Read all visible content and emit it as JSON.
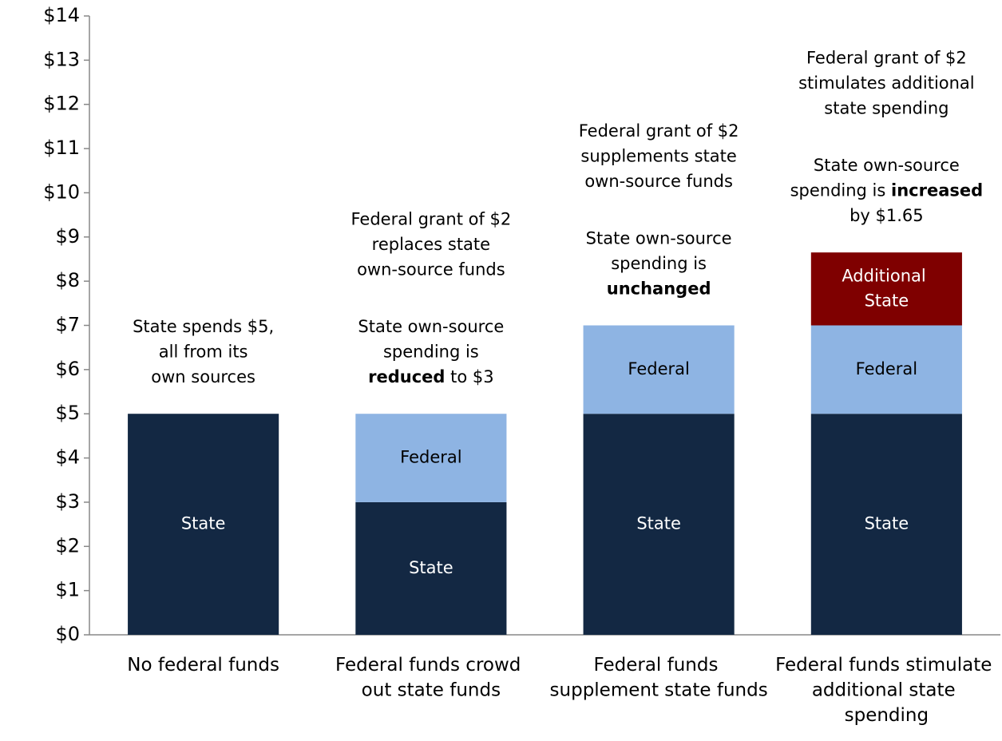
{
  "chart_data": {
    "type": "stacked_bar",
    "categories": [
      "No federal funds",
      "Federal funds crowd out state funds",
      "Federal funds supplement state funds",
      "Federal funds stimulate additional state spending"
    ],
    "series": [
      {
        "name": "State",
        "color": "#132843",
        "label_color": "#ffffff",
        "values": [
          5,
          3,
          5,
          5
        ]
      },
      {
        "name": "Federal",
        "color": "#8eb4e3",
        "label_color": "#000000",
        "values": [
          null,
          2,
          2,
          2
        ]
      },
      {
        "name": "Additional State",
        "color": "#7f0000",
        "label_color": "#ffffff",
        "values": [
          null,
          null,
          null,
          1.65
        ]
      }
    ],
    "annotations": [
      [
        [
          [
            "State spends $5,"
          ],
          [
            "all from its"
          ],
          [
            "own sources"
          ]
        ]
      ],
      [
        [
          [
            "Federal grant of $2"
          ],
          [
            "replaces state"
          ],
          [
            "own-source funds"
          ]
        ],
        [
          [
            "State own-source"
          ],
          [
            "spending is"
          ],
          [
            {
              "text": "reduced",
              "bold": true
            },
            "to $3"
          ]
        ]
      ],
      [
        [
          [
            "Federal grant of $2"
          ],
          [
            "supplements state"
          ],
          [
            "own-source funds"
          ]
        ],
        [
          [
            "State own-source"
          ],
          [
            "spending is"
          ],
          [
            {
              "text": "unchanged",
              "bold": true
            }
          ]
        ]
      ],
      [
        [
          [
            "Federal grant of $2"
          ],
          [
            "stimulates additional"
          ],
          [
            "state spending"
          ]
        ],
        [
          [
            "State own-source"
          ],
          [
            "spending is",
            {
              "text": "increased",
              "bold": true
            }
          ],
          [
            "by $1.65"
          ]
        ]
      ]
    ],
    "ylim": [
      0,
      14
    ],
    "yticks": [
      {
        "value": 0,
        "label": "$0"
      },
      {
        "value": 1,
        "label": "$1"
      },
      {
        "value": 2,
        "label": "$2"
      },
      {
        "value": 3,
        "label": "$3"
      },
      {
        "value": 4,
        "label": "$4"
      },
      {
        "value": 5,
        "label": "$5"
      },
      {
        "value": 6,
        "label": "$6"
      },
      {
        "value": 7,
        "label": "$7"
      },
      {
        "value": 8,
        "label": "$8"
      },
      {
        "value": 9,
        "label": "$9"
      },
      {
        "value": 10,
        "label": "$10"
      },
      {
        "value": 11,
        "label": "$11"
      },
      {
        "value": 12,
        "label": "$12"
      },
      {
        "value": 13,
        "label": "$13"
      },
      {
        "value": 14,
        "label": "$14"
      }
    ],
    "grid": false
  }
}
